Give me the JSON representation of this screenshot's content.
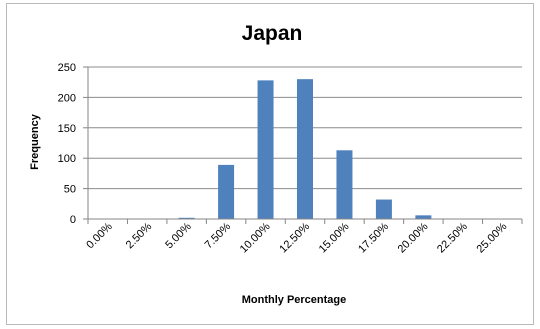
{
  "chart_data": {
    "type": "bar",
    "title": "Japan",
    "xlabel": "Monthly Percentage",
    "ylabel": "Frequency",
    "categories": [
      "0.00%",
      "2.50%",
      "5.00%",
      "7.50%",
      "10.00%",
      "12.50%",
      "15.00%",
      "17.50%",
      "20.00%",
      "22.50%",
      "25.00%"
    ],
    "series": [
      {
        "values": [
          0,
          0,
          2,
          89,
          228,
          230,
          113,
          32,
          6,
          0,
          0
        ]
      }
    ],
    "ylim": [
      0,
      250
    ],
    "yticks": [
      0,
      50,
      100,
      150,
      200,
      250
    ],
    "grid": true,
    "legend": "none",
    "colors": {
      "bar": "#4f81bd",
      "grid": "#8c8c8c",
      "axis": "#868686"
    }
  }
}
